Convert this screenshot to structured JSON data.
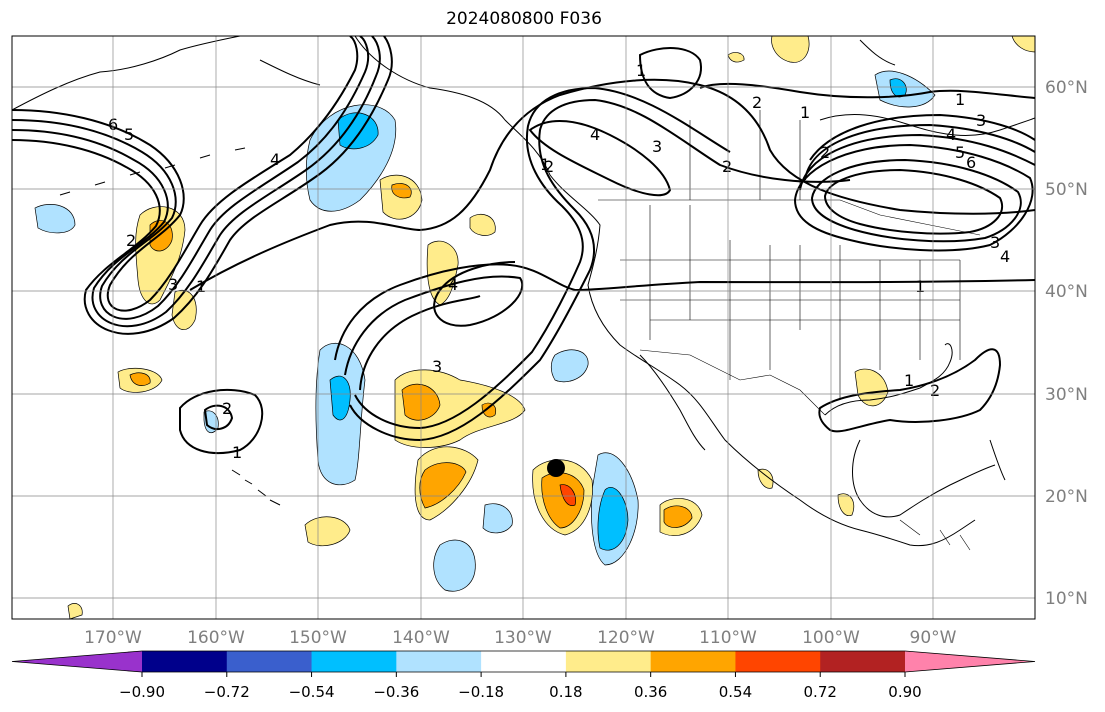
{
  "title": "2024080800 F036",
  "longitude_labels": [
    "170°W",
    "160°W",
    "150°W",
    "140°W",
    "130°W",
    "120°W",
    "110°W",
    "100°W",
    "90°W"
  ],
  "latitude_labels": [
    "60°N",
    "50°N",
    "40°N",
    "30°N",
    "20°N",
    "10°N"
  ],
  "colorbar": {
    "ticks": [
      "−0.90",
      "−0.72",
      "−0.54",
      "−0.36",
      "−0.18",
      "0.18",
      "0.36",
      "0.54",
      "0.72",
      "0.90"
    ],
    "colors": [
      "#9932cc",
      "#00008b",
      "#3a5fcd",
      "#00bfff",
      "#b0e2ff",
      "#ffffff",
      "#ffec8b",
      "#ffa500",
      "#ff4500",
      "#b22222",
      "#ff82ab"
    ]
  },
  "contour_labels": [
    "6",
    "5",
    "4",
    "2",
    "1",
    "3",
    "1",
    "2",
    "3",
    "4",
    "2",
    "1",
    "4",
    "3",
    "2",
    "1",
    "2",
    "1",
    "3",
    "4",
    "5",
    "6",
    "1",
    "1",
    "2",
    "3",
    "4",
    "1",
    "2"
  ],
  "marker": {
    "name": "location-point",
    "lon": -126.7,
    "lat": 22.8
  }
}
